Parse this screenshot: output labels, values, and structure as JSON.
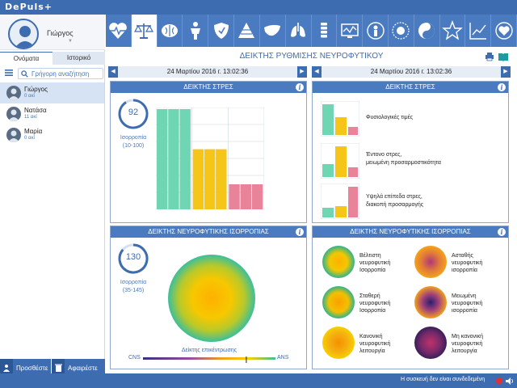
{
  "app": {
    "logo": "DePuls+"
  },
  "user": {
    "name": "Γιώργος"
  },
  "tabs": {
    "names": "Ονόματα",
    "history": "Ιστορικό"
  },
  "search": {
    "placeholder": "Γρήγορη αναζήτηση"
  },
  "people": [
    {
      "name": "Γιώργος",
      "sub": "0 ακί"
    },
    {
      "name": "Νατάσα",
      "sub": "11 ακί"
    },
    {
      "name": "Μαρία",
      "sub": "0 ακί"
    }
  ],
  "buttons": {
    "add": "Προσθέστε",
    "remove": "Αφαιρέστε"
  },
  "icons": [
    "heart-monitor-icon",
    "scales-icon",
    "brain-icon",
    "body-figure-icon",
    "shield-icon",
    "pyramid-icon",
    "liver-icon",
    "lungs-icon",
    "spine-icon",
    "chart-monitor-icon",
    "person-icon",
    "sun-icon",
    "yin-yang-icon",
    "star-icon",
    "trend-chart-icon",
    "heart-badge-icon"
  ],
  "page": {
    "title": "ΔΕΙΚΤΗΣ ΡΥΘΜΙΣΗΣ ΝΕΥΡΟΦΥΤΙΚΟΥ"
  },
  "dates": {
    "left": "24 Μαρτίου 2016 г. 13:02:36",
    "right": "24 Μαρτίου 2016 г. 13:02:36"
  },
  "stress": {
    "title": "ΔΕΙΚΤΗΣ ΣΤΡΕΣ",
    "value": "92",
    "label": "Ισορροπία",
    "range": "(10-100)"
  },
  "stress_legend": {
    "title": "ΔΕΙΚΤΗΣ ΣΤΡΕΣ",
    "items": [
      {
        "text1": "Φυσιολογικές  τιμές",
        "text2": ""
      },
      {
        "text1": "Έντονο στρες,",
        "text2": "μειωμένη προσαρμοστικότητα"
      },
      {
        "text1": "Υψηλά επίπεδα στρες,",
        "text2": "διακοπή προσαρμογής"
      }
    ]
  },
  "balance": {
    "title": "ΔΕΙΚΤΗΣ ΝΕΥΡΟΦΥΤΙΚΗΣ ΙΣΟΡΡΟΠΙΑΣ",
    "value": "130",
    "label": "Ισορροπία",
    "range": "(35-145)",
    "scale_label": "Δείκτης επικέντρωσης",
    "left": "CNS",
    "right": "ANS",
    "marker": 0.78
  },
  "balance_legend": {
    "title": "ΔΕΙΚΤΗΣ ΝΕΥΡΟΦΥΤΙΚΗΣ ΙΣΟΡΡΟΠΙΑΣ",
    "items": [
      {
        "l1": "Βέλτιστη",
        "l2": "νευροφυτική",
        "l3": "Ισορροπία"
      },
      {
        "l1": "Ασταθής",
        "l2": "νευροφυτική",
        "l3": "ισορροπία"
      },
      {
        "l1": "Σταθερή",
        "l2": "νευροφυτική",
        "l3": "Ισορροπία"
      },
      {
        "l1": "Μειωμένη",
        "l2": "νευροφυτική",
        "l3": "ισορροπία"
      },
      {
        "l1": "Κανονική",
        "l2": "νευροφυτική",
        "l3": "λειτουργία"
      },
      {
        "l1": "Μη κανονική",
        "l2": "νευροφυτική",
        "l3": "λειτουργία"
      }
    ]
  },
  "status": {
    "text": "Η συσκευή δεν είναι συνδεδεμένη"
  },
  "colors": {
    "accent": "#3d6cb0",
    "green": "#6fd6b4",
    "yellow": "#f5c518",
    "pink": "#e8839a"
  },
  "chart_data": {
    "type": "bar",
    "title": "ΔΕΙΚΤΗΣ ΣΤΡΕΣ",
    "categories": [
      "Φυσιολογικές τιμές",
      "Έντονο στρες",
      "Υψηλά επίπεδα στρες"
    ],
    "values": [
      100,
      60,
      25
    ],
    "ylim": [
      0,
      100
    ]
  }
}
